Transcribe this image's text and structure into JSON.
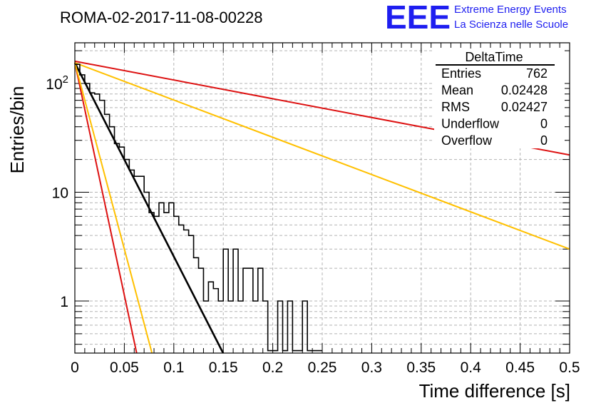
{
  "run_title": "ROMA-02-2017-11-08-00228",
  "logo": {
    "mark": "EEE",
    "line1": "Extreme Energy Events",
    "line2": "La Scienza nelle Scuole",
    "color": "#1e1ef0"
  },
  "stats": {
    "name": "DeltaTime",
    "rows": [
      {
        "label": "Entries",
        "value": "762"
      },
      {
        "label": "Mean",
        "value": "0.02428"
      },
      {
        "label": "RMS",
        "value": "0.02427"
      },
      {
        "label": "Underflow",
        "value": "0"
      },
      {
        "label": "Overflow",
        "value": "0"
      }
    ]
  },
  "chart_data": {
    "type": "histogram",
    "title": "ROMA-02-2017-11-08-00228",
    "xlabel": "Time difference [s]",
    "ylabel": "Entries/bin",
    "xlim": [
      0,
      0.5
    ],
    "ylim": [
      0.35,
      260
    ],
    "yscale": "log",
    "grid": true,
    "x_ticks": [
      "0",
      "0.05",
      "0.1",
      "0.15",
      "0.2",
      "0.25",
      "0.3",
      "0.35",
      "0.4",
      "0.45",
      "0.5"
    ],
    "y_ticks": [
      {
        "value": 1,
        "label": "1"
      },
      {
        "value": 10,
        "label": "10"
      },
      {
        "value": 100,
        "label": "10^2"
      }
    ],
    "bin_width": 0.005,
    "histogram": {
      "bin_edges_start": 0,
      "values": [
        150,
        120,
        100,
        82,
        80,
        70,
        52,
        40,
        28,
        26,
        20,
        16,
        14,
        14,
        10,
        6.5,
        6,
        8,
        6.5,
        8,
        6,
        5,
        4.5,
        4,
        2.5,
        2,
        1,
        1.5,
        1.3,
        1,
        3,
        1,
        3,
        1,
        2,
        2,
        1,
        2,
        1,
        0.35,
        0.35,
        1,
        0.35,
        1,
        0.35,
        0.35,
        1,
        0.35,
        0.35,
        0.35
      ],
      "line_color": "#000000"
    },
    "fits": [
      {
        "color": "#000000",
        "x": [
          0,
          0.15
        ],
        "y": [
          155,
          0.33
        ]
      },
      {
        "color": "#dd1111",
        "x": [
          0,
          0.5
        ],
        "y": [
          160,
          22
        ]
      },
      {
        "color": "#ffc000",
        "x": [
          0,
          0.5
        ],
        "y": [
          155,
          3.0
        ]
      },
      {
        "color": "#dd1111",
        "x": [
          0,
          0.0625
        ],
        "y": [
          155,
          0.33
        ]
      },
      {
        "color": "#ffc000",
        "x": [
          0,
          0.078
        ],
        "y": [
          155,
          0.33
        ]
      }
    ]
  }
}
